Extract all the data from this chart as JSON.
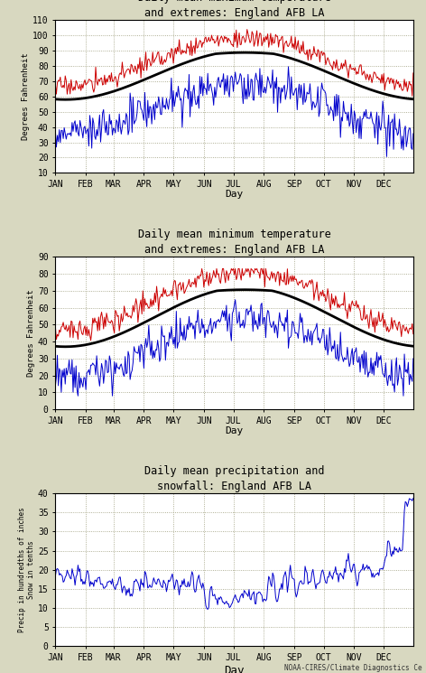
{
  "title1": "Daily mean maximum temperature\nand extremes: England AFB LA",
  "title2": "Daily mean minimum temperature\nand extremes: England AFB LA",
  "title3": "Daily mean precipitation and\nsnowfall: England AFB LA",
  "ylabel1": "Degrees Fahrenheit",
  "ylabel2": "Degrees Fahrenheit",
  "ylabel3": "Precip in hundredths of inches\nSnow in tenths",
  "xlabel": "Day",
  "months": [
    "JAN",
    "FEB",
    "MAR",
    "APR",
    "MAY",
    "JUN",
    "JUL",
    "AUG",
    "SEP",
    "OCT",
    "NOV",
    "DEC"
  ],
  "background_color": "#d8d8c0",
  "plot_bg": "#ffffff",
  "line_color_mean": "#000000",
  "line_color_red": "#cc0000",
  "line_color_blue": "#0000cc",
  "ylim1": [
    10,
    110
  ],
  "yticks1": [
    10,
    20,
    30,
    40,
    50,
    60,
    70,
    80,
    90,
    100,
    110
  ],
  "ylim2": [
    0,
    90
  ],
  "yticks2": [
    0,
    10,
    20,
    30,
    40,
    50,
    60,
    70,
    80,
    90
  ],
  "ylim3": [
    0,
    40
  ],
  "yticks3": [
    0,
    5,
    10,
    15,
    20,
    25,
    30,
    35,
    40
  ],
  "credit": "NOAA-CIRES/Climate Diagnostics Ce"
}
